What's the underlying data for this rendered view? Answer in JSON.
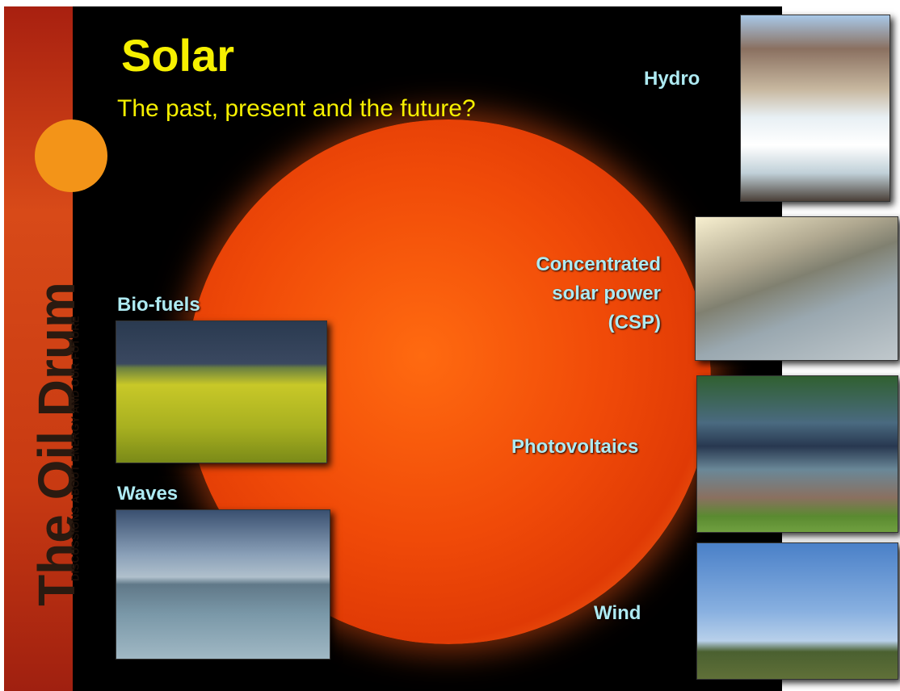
{
  "header": {
    "title": "Solar",
    "subtitle": "The past, present and the future?"
  },
  "sidebar": {
    "logo": "The Oil Drum",
    "tagline": "DISCUSSIONS ABOUT ENERGY AND OUR FUTURE"
  },
  "labels": {
    "hydro": "Hydro",
    "csp": [
      "Concentrated",
      "solar power",
      "(CSP)"
    ],
    "photovoltaics": "Photovoltaics",
    "wind": "Wind",
    "biofuels": "Bio-fuels",
    "waves": "Waves"
  }
}
